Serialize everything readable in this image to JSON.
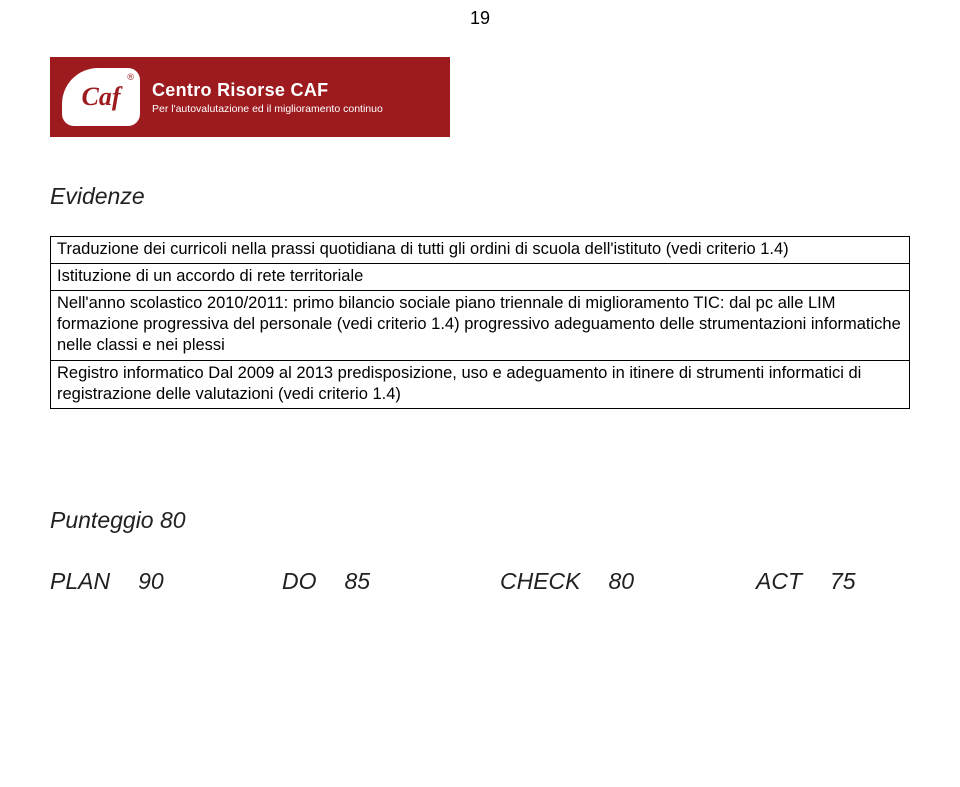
{
  "page_number": "19",
  "banner": {
    "logo_text": "Caf",
    "reg_mark": "®",
    "title": "Centro Risorse CAF",
    "subtitle": "Per l'autovalutazione ed il miglioramento continuo",
    "bg_color": "#9d1b1f",
    "text_color": "#ffffff"
  },
  "evidenze": {
    "title": "Evidenze",
    "rows": [
      "Traduzione dei curricoli nella prassi quotidiana di tutti gli ordini di scuola dell'istituto (vedi criterio 1.4)",
      "Istituzione di un accordo di rete territoriale",
      "Nell'anno scolastico 2010/2011:\nprimo bilancio sociale\npiano triennale di miglioramento\nTIC: dal pc alle LIM\nformazione progressiva del personale (vedi criterio 1.4)\nprogressivo adeguamento delle strumentazioni informatiche nelle classi e nei plessi",
      "Registro informatico\nDal 2009 al 2013 predisposizione, uso e adeguamento in itinere  di strumenti informatici di registrazione delle valutazioni (vedi criterio 1.4)"
    ]
  },
  "punteggio": {
    "label": "Punteggio",
    "value": "80",
    "items": [
      {
        "name": "PLAN",
        "score": "90"
      },
      {
        "name": "DO",
        "score": "85"
      },
      {
        "name": "CHECK",
        "score": "80"
      },
      {
        "name": "ACT",
        "score": "75"
      }
    ]
  }
}
